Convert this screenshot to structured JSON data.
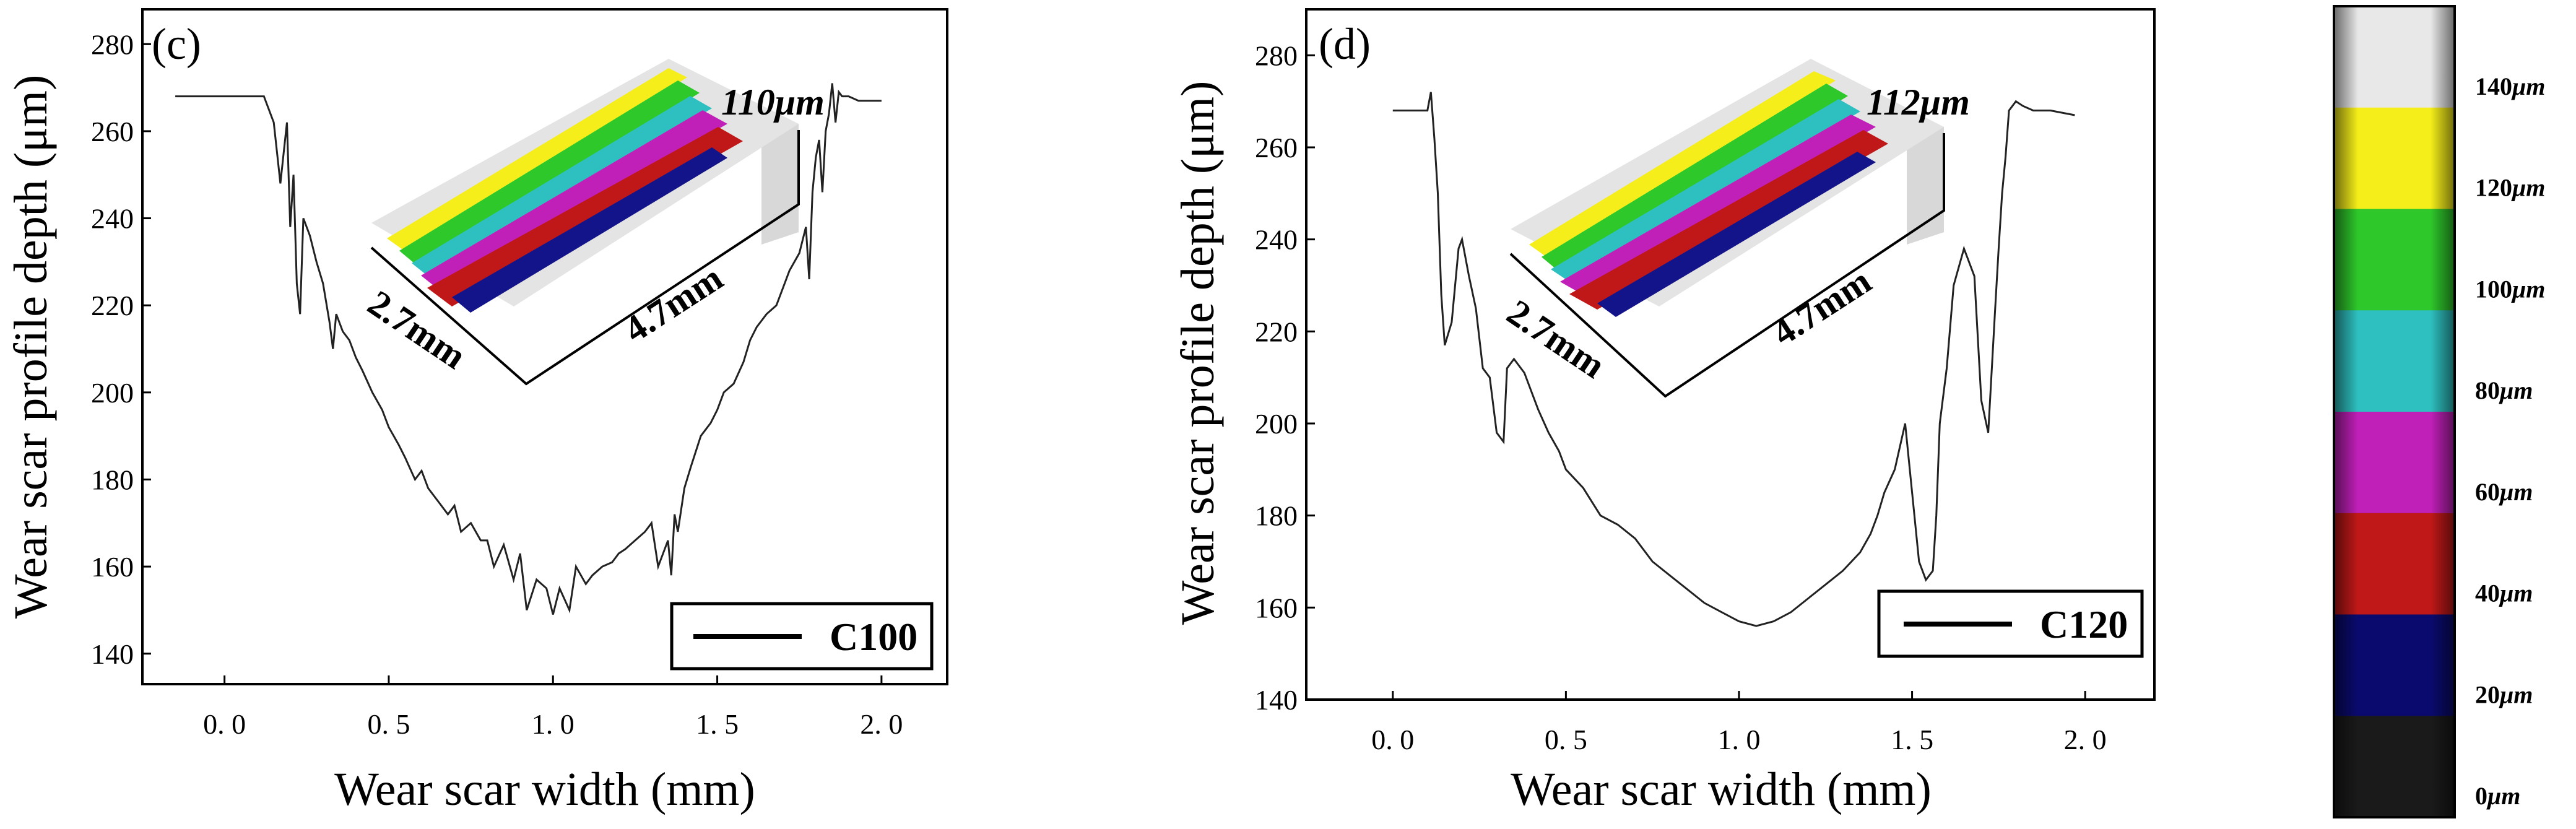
{
  "chart_data": [
    {
      "type": "line",
      "panel_label": "(c)",
      "xlabel": "Wear scar width (mm)",
      "ylabel": "Wear scar profile depth (μm)",
      "xlim": [
        -0.25,
        2.2
      ],
      "ylim": [
        133,
        288
      ],
      "x_ticks": [
        "0.0",
        "0.5",
        "1.0",
        "1.5",
        "2.0"
      ],
      "y_ticks": [
        "140",
        "160",
        "180",
        "200",
        "220",
        "240",
        "260",
        "280"
      ],
      "legend": "C100",
      "inset": {
        "depth_label": "110",
        "depth_unit": "μm",
        "width_label": "2.7mm",
        "length_label": "4.7mm"
      },
      "series": [
        {
          "name": "C100",
          "x": [
            -0.15,
            0.05,
            0.12,
            0.15,
            0.17,
            0.19,
            0.2,
            0.21,
            0.22,
            0.23,
            0.24,
            0.26,
            0.28,
            0.3,
            0.32,
            0.33,
            0.34,
            0.36,
            0.38,
            0.4,
            0.42,
            0.45,
            0.48,
            0.5,
            0.53,
            0.55,
            0.58,
            0.6,
            0.62,
            0.65,
            0.68,
            0.7,
            0.72,
            0.75,
            0.78,
            0.8,
            0.82,
            0.85,
            0.88,
            0.9,
            0.92,
            0.95,
            0.98,
            1.0,
            1.02,
            1.05,
            1.07,
            1.1,
            1.12,
            1.15,
            1.18,
            1.2,
            1.22,
            1.25,
            1.28,
            1.3,
            1.32,
            1.35,
            1.36,
            1.37,
            1.38,
            1.4,
            1.42,
            1.45,
            1.48,
            1.5,
            1.52,
            1.55,
            1.58,
            1.6,
            1.62,
            1.65,
            1.68,
            1.7,
            1.72,
            1.75,
            1.77,
            1.78,
            1.79,
            1.8,
            1.81,
            1.82,
            1.83,
            1.84,
            1.85,
            1.86,
            1.87,
            1.88,
            1.9,
            1.93,
            2.0
          ],
          "values": [
            268,
            268,
            268,
            262,
            248,
            262,
            238,
            250,
            225,
            218,
            240,
            236,
            230,
            225,
            216,
            210,
            218,
            214,
            212,
            208,
            205,
            200,
            196,
            192,
            188,
            185,
            180,
            182,
            178,
            175,
            172,
            174,
            168,
            170,
            166,
            166,
            160,
            165,
            157,
            163,
            150,
            157,
            155,
            149,
            155,
            150,
            160,
            156,
            158,
            160,
            161,
            163,
            164,
            166,
            168,
            170,
            160,
            166,
            158,
            172,
            168,
            178,
            183,
            190,
            193,
            196,
            200,
            202,
            207,
            212,
            215,
            218,
            220,
            224,
            228,
            232,
            238,
            226,
            246,
            254,
            258,
            246,
            260,
            264,
            271,
            262,
            269,
            268,
            268,
            267,
            267
          ]
        }
      ]
    },
    {
      "type": "line",
      "panel_label": "(d)",
      "xlabel": "Wear scar width (mm)",
      "ylabel": "Wear scar profile depth (μm)",
      "xlim": [
        -0.25,
        2.2
      ],
      "ylim": [
        140,
        290
      ],
      "x_ticks": [
        "0.0",
        "0.5",
        "1.0",
        "1.5",
        "2.0"
      ],
      "y_ticks": [
        "140",
        "160",
        "180",
        "200",
        "220",
        "240",
        "260",
        "280"
      ],
      "legend": "C120",
      "inset": {
        "depth_label": "112",
        "depth_unit": "μm",
        "width_label": "2.7mm",
        "length_label": "4.7mm"
      },
      "series": [
        {
          "name": "C120",
          "x": [
            0.0,
            0.1,
            0.11,
            0.12,
            0.13,
            0.14,
            0.15,
            0.17,
            0.19,
            0.2,
            0.22,
            0.24,
            0.26,
            0.28,
            0.3,
            0.32,
            0.33,
            0.35,
            0.38,
            0.4,
            0.42,
            0.45,
            0.48,
            0.5,
            0.55,
            0.6,
            0.65,
            0.7,
            0.75,
            0.8,
            0.85,
            0.9,
            0.95,
            1.0,
            1.05,
            1.1,
            1.15,
            1.2,
            1.25,
            1.3,
            1.35,
            1.38,
            1.4,
            1.42,
            1.45,
            1.48,
            1.5,
            1.52,
            1.54,
            1.56,
            1.57,
            1.58,
            1.6,
            1.62,
            1.65,
            1.68,
            1.7,
            1.72,
            1.74,
            1.75,
            1.76,
            1.77,
            1.78,
            1.8,
            1.82,
            1.85,
            1.9,
            1.97
          ],
          "values": [
            268,
            268,
            272,
            262,
            250,
            228,
            217,
            222,
            238,
            240,
            232,
            225,
            212,
            210,
            198,
            196,
            212,
            214,
            211,
            207,
            203,
            198,
            194,
            190,
            186,
            180,
            178,
            175,
            170,
            167,
            164,
            161,
            159,
            157,
            156,
            157,
            159,
            162,
            165,
            168,
            172,
            176,
            180,
            185,
            190,
            200,
            185,
            170,
            166,
            168,
            180,
            200,
            212,
            230,
            238,
            232,
            205,
            198,
            225,
            238,
            250,
            258,
            268,
            270,
            269,
            268,
            268,
            267
          ]
        }
      ]
    },
    {
      "type": "heatmap",
      "colorbar_labels": [
        {
          "value": "140",
          "unit": "μm"
        },
        {
          "value": "120",
          "unit": "μm"
        },
        {
          "value": "100",
          "unit": "μm"
        },
        {
          "value": "80",
          "unit": "μm"
        },
        {
          "value": "60",
          "unit": "μm"
        },
        {
          "value": "40",
          "unit": "μm"
        },
        {
          "value": "20",
          "unit": "μm"
        },
        {
          "value": "0",
          "unit": "μm"
        }
      ],
      "colors": [
        "#e8e8e8",
        "#f5ee1a",
        "#2ec82a",
        "#2ec0c0",
        "#c020b8",
        "#c01818",
        "#0a0a6e",
        "#1a1a1a"
      ]
    }
  ]
}
